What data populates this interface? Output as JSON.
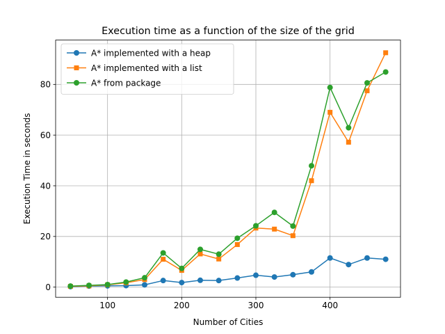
{
  "chart_data": {
    "type": "line",
    "title": "Execution time as a function of the size of the grid",
    "xlabel": "Number of Cities",
    "ylabel": "Execution Time in seconds",
    "x": [
      50,
      75,
      100,
      125,
      150,
      175,
      200,
      225,
      250,
      275,
      300,
      325,
      350,
      375,
      400,
      425,
      450,
      475
    ],
    "xlim": [
      30,
      495
    ],
    "ylim": [
      -4,
      97.5
    ],
    "xticks": [
      100,
      200,
      300,
      400
    ],
    "yticks": [
      0,
      20,
      40,
      60,
      80
    ],
    "grid": true,
    "legend_position": "top-left",
    "series": [
      {
        "name": "A* implemented with a heap",
        "color": "#1f77b4",
        "marker": "circle",
        "values": [
          0.2,
          0.4,
          0.5,
          0.6,
          0.9,
          2.6,
          1.8,
          2.7,
          2.6,
          3.6,
          4.7,
          4.0,
          4.9,
          6.0,
          11.5,
          8.9,
          11.5,
          11.0
        ]
      },
      {
        "name": "A* implemented with a list",
        "color": "#ff7f0e",
        "marker": "square",
        "values": [
          0.3,
          0.5,
          0.9,
          1.7,
          3.0,
          11.0,
          6.6,
          13.1,
          11.1,
          16.8,
          23.3,
          22.9,
          20.3,
          42.0,
          69.0,
          57.2,
          77.5,
          92.5
        ]
      },
      {
        "name": "A* from package",
        "color": "#2ca02c",
        "marker": "circle",
        "values": [
          0.4,
          0.7,
          1.0,
          2.0,
          3.7,
          13.5,
          7.4,
          14.9,
          13.0,
          19.3,
          24.2,
          29.5,
          24.1,
          47.9,
          78.8,
          62.9,
          80.6,
          84.9
        ]
      }
    ]
  }
}
